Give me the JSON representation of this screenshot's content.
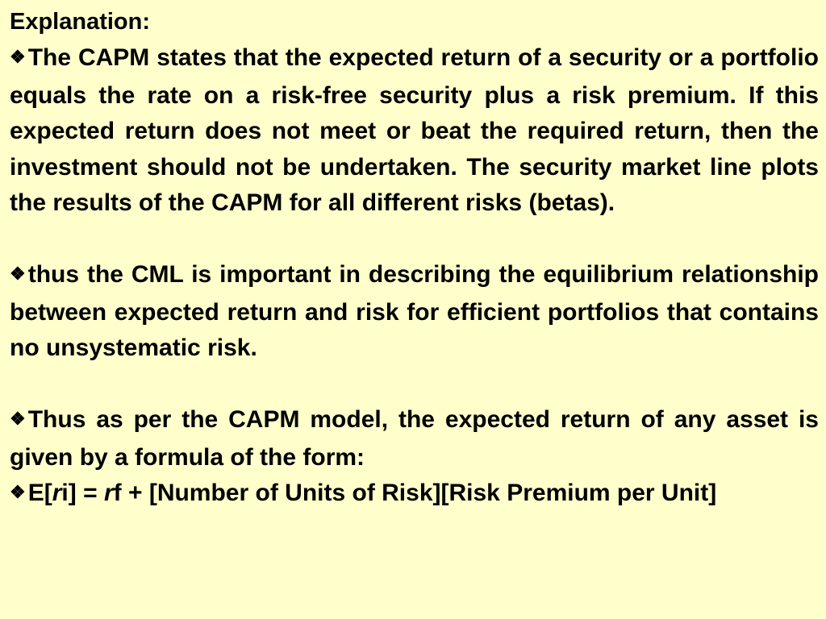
{
  "slide": {
    "heading": "Explanation:",
    "bullet_symbol": "❖",
    "bullets": [
      "The CAPM states that the expected return of a security or a portfolio equals the rate on a risk-free security plus a risk premium. If this expected return does not meet or beat the required return, then the investment should not be undertaken. The security market line plots the results of the CAPM for all different risks (betas).",
      "thus the CML is important in describing the equilibrium relationship between expected return and risk for efficient portfolios that contains no unsystematic risk.",
      "Thus as per the CAPM model, the expected return of any asset is given by a formula of the form:"
    ],
    "formula": {
      "prefix": "E[",
      "ri": "r",
      "ri_sub": "i",
      "middle": "] = ",
      "rf": "r",
      "rf_sub": "f",
      "suffix": " + [Number of Units of Risk][Risk Premium per Unit]"
    }
  }
}
